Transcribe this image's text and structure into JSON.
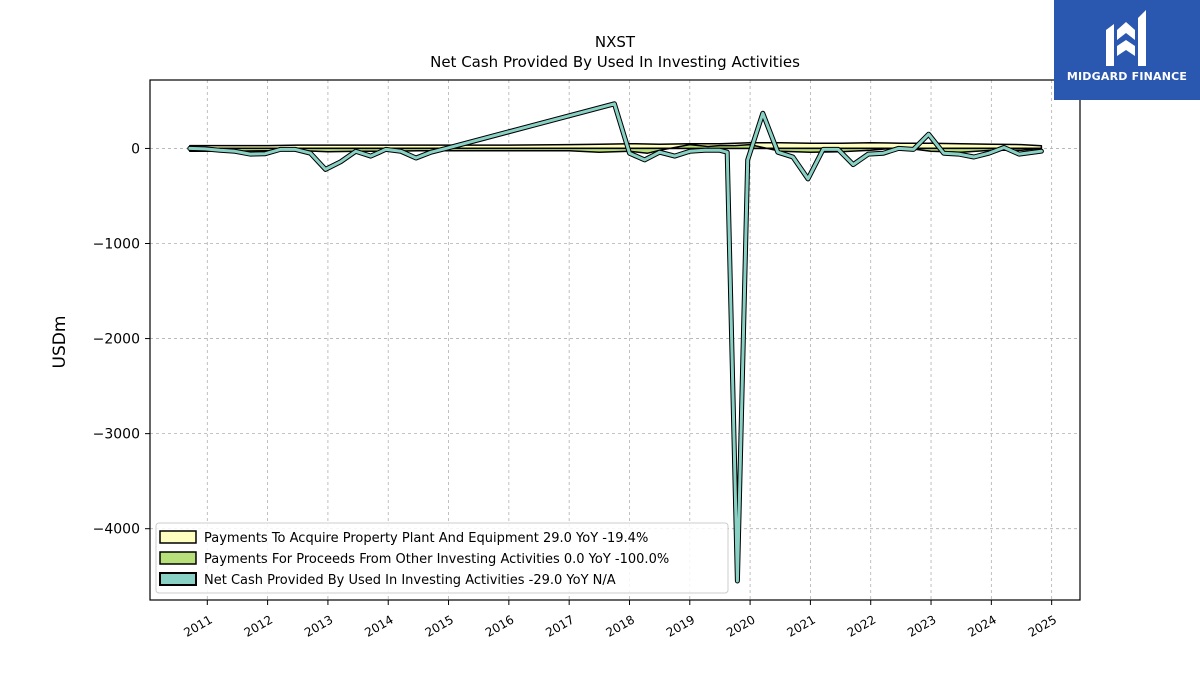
{
  "logo": {
    "text": "MIDGARD FINANCE",
    "color": "#2a57b0"
  },
  "chart_data": {
    "type": "area",
    "title": "NXST",
    "subtitle": "Net Cash Provided By Used In Investing Activities",
    "xlabel": "",
    "ylabel": "USDm",
    "ylim": [
      -4750,
      720
    ],
    "xlim": [
      2010.05,
      2025.47
    ],
    "yticks": [
      0,
      -1000,
      -2000,
      -3000,
      -4000
    ],
    "ytick_labels": [
      "0",
      "−1000",
      "−2000",
      "−3000",
      "−4000"
    ],
    "xticks": [
      2011,
      2012,
      2013,
      2014,
      2015,
      2016,
      2017,
      2018,
      2019,
      2020,
      2021,
      2022,
      2023,
      2024,
      2025
    ],
    "grid": true,
    "legend_position": "lower-left",
    "series": [
      {
        "name": "Payments To Acquire Property Plant And Equipment  29.0 YoY -19.4%",
        "color": "#ffffc0",
        "baseline": 0,
        "style": "area",
        "x": [
          2010.71,
          2011.0,
          2011.5,
          2012.0,
          2012.5,
          2013.0,
          2013.5,
          2014.0,
          2014.5,
          2015.0,
          2016.0,
          2017.0,
          2017.5,
          2018.0,
          2018.5,
          2019.0,
          2019.5,
          2019.75,
          2020.0,
          2020.5,
          2021.0,
          2021.5,
          2022.0,
          2022.5,
          2023.0,
          2023.5,
          2024.0,
          2024.5,
          2024.83
        ],
        "y": [
          30,
          30,
          30,
          30,
          35,
          35,
          35,
          35,
          35,
          35,
          35,
          40,
          45,
          50,
          45,
          50,
          50,
          55,
          60,
          60,
          55,
          55,
          60,
          55,
          55,
          50,
          45,
          40,
          29
        ]
      },
      {
        "name": "Payments For Proceeds From Other Investing Activities  0.0 YoY -100.0%",
        "color": "#b8e07a",
        "baseline": 0,
        "style": "area",
        "x": [
          2010.71,
          2011.0,
          2011.5,
          2012.0,
          2012.5,
          2013.0,
          2013.5,
          2014.0,
          2014.5,
          2015.0,
          2016.0,
          2017.0,
          2017.5,
          2018.0,
          2018.3,
          2018.5,
          2019.0,
          2019.3,
          2019.5,
          2019.75,
          2020.0,
          2020.5,
          2021.0,
          2021.5,
          2022.0,
          2022.5,
          2023.0,
          2023.5,
          2024.0,
          2024.5,
          2024.83
        ],
        "y": [
          -30,
          -30,
          -28,
          -25,
          -22,
          -35,
          -30,
          -30,
          -25,
          -25,
          -25,
          -25,
          -40,
          -30,
          -50,
          -20,
          40,
          20,
          30,
          30,
          40,
          -30,
          -40,
          -35,
          -20,
          10,
          -30,
          -40,
          -20,
          -20,
          0
        ]
      },
      {
        "name": "Net Cash Provided By Used In Investing Activities  -29.0 YoY N/A",
        "color": "#88d1c4",
        "baseline": null,
        "style": "line",
        "x": [
          2010.71,
          2010.96,
          2011.21,
          2011.46,
          2011.71,
          2011.96,
          2012.21,
          2012.46,
          2012.71,
          2012.96,
          2013.21,
          2013.46,
          2013.71,
          2013.96,
          2014.21,
          2014.46,
          2014.71,
          2014.96,
          2017.75,
          2018.0,
          2018.25,
          2018.5,
          2018.75,
          2019.0,
          2019.25,
          2019.5,
          2019.62,
          2019.79,
          2019.96,
          2020.21,
          2020.46,
          2020.71,
          2020.96,
          2021.21,
          2021.46,
          2021.71,
          2021.96,
          2022.21,
          2022.46,
          2022.71,
          2022.96,
          2023.21,
          2023.46,
          2023.71,
          2023.96,
          2024.21,
          2024.46,
          2024.83
        ],
        "y": [
          0,
          -5,
          -20,
          -30,
          -60,
          -55,
          -10,
          -10,
          -50,
          -220,
          -140,
          -30,
          -80,
          -10,
          -30,
          -100,
          -40,
          0,
          470,
          -50,
          -120,
          -40,
          -80,
          -30,
          -20,
          -20,
          -40,
          -4550,
          -120,
          370,
          -40,
          -90,
          -320,
          -10,
          -10,
          -170,
          -60,
          -50,
          0,
          -10,
          150,
          -50,
          -60,
          -90,
          -50,
          10,
          -60,
          -29
        ]
      }
    ]
  }
}
